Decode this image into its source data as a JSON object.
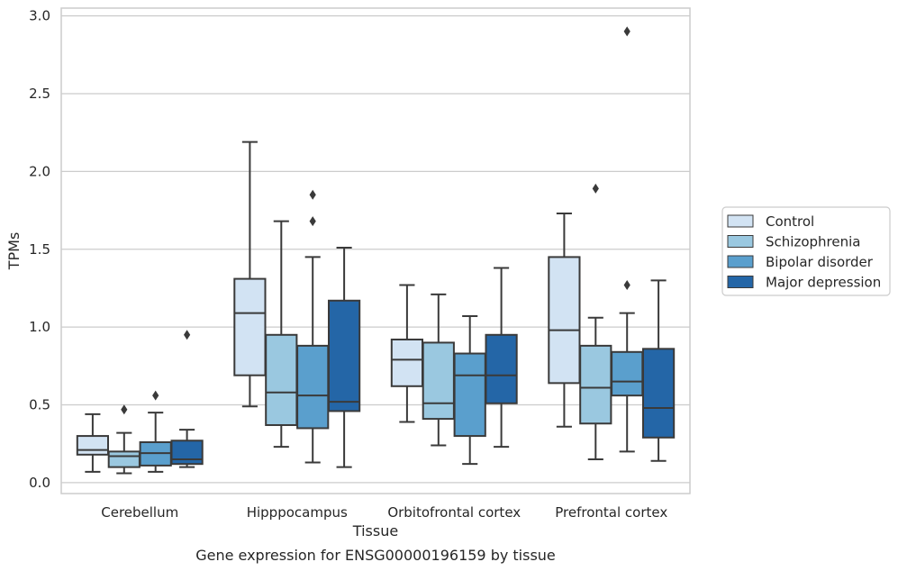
{
  "chart_data": {
    "type": "box",
    "xlabel": "Tissue",
    "ylabel": "TPMs",
    "caption": "Gene expression for ENSG00000196159 by tissue",
    "ylim": [
      -0.07,
      3.05
    ],
    "yticks": [
      "0.0",
      "0.5",
      "1.0",
      "1.5",
      "2.0",
      "2.5",
      "3.0"
    ],
    "grid": "horizontal",
    "legend_position": "right",
    "categories": [
      "Cerebellum",
      "Hipppocampus",
      "Orbitofrontal cortex",
      "Prefrontal cortex"
    ],
    "series": [
      {
        "name": "Control",
        "color": "#d2e3f3",
        "boxes": [
          {
            "whisker_low": 0.07,
            "q1": 0.18,
            "median": 0.21,
            "q3": 0.3,
            "whisker_high": 0.44,
            "outliers": []
          },
          {
            "whisker_low": 0.49,
            "q1": 0.69,
            "median": 1.09,
            "q3": 1.31,
            "whisker_high": 2.19,
            "outliers": []
          },
          {
            "whisker_low": 0.39,
            "q1": 0.62,
            "median": 0.79,
            "q3": 0.92,
            "whisker_high": 1.27,
            "outliers": []
          },
          {
            "whisker_low": 0.36,
            "q1": 0.64,
            "median": 0.98,
            "q3": 1.45,
            "whisker_high": 1.73,
            "outliers": []
          }
        ]
      },
      {
        "name": "Schizophrenia",
        "color": "#9ac8e0",
        "boxes": [
          {
            "whisker_low": 0.06,
            "q1": 0.1,
            "median": 0.17,
            "q3": 0.2,
            "whisker_high": 0.32,
            "outliers": [
              0.47
            ]
          },
          {
            "whisker_low": 0.23,
            "q1": 0.37,
            "median": 0.58,
            "q3": 0.95,
            "whisker_high": 1.68,
            "outliers": []
          },
          {
            "whisker_low": 0.24,
            "q1": 0.41,
            "median": 0.51,
            "q3": 0.9,
            "whisker_high": 1.21,
            "outliers": []
          },
          {
            "whisker_low": 0.15,
            "q1": 0.38,
            "median": 0.61,
            "q3": 0.88,
            "whisker_high": 1.06,
            "outliers": [
              1.89
            ]
          }
        ]
      },
      {
        "name": "Bipolar disorder",
        "color": "#5a9fcd",
        "boxes": [
          {
            "whisker_low": 0.07,
            "q1": 0.11,
            "median": 0.19,
            "q3": 0.26,
            "whisker_high": 0.45,
            "outliers": [
              0.56
            ]
          },
          {
            "whisker_low": 0.13,
            "q1": 0.35,
            "median": 0.56,
            "q3": 0.88,
            "whisker_high": 1.45,
            "outliers": [
              1.68,
              1.85
            ]
          },
          {
            "whisker_low": 0.12,
            "q1": 0.3,
            "median": 0.69,
            "q3": 0.83,
            "whisker_high": 1.07,
            "outliers": []
          },
          {
            "whisker_low": 0.2,
            "q1": 0.56,
            "median": 0.65,
            "q3": 0.84,
            "whisker_high": 1.09,
            "outliers": [
              1.27,
              2.9
            ]
          }
        ]
      },
      {
        "name": "Major depression",
        "color": "#2466a7",
        "boxes": [
          {
            "whisker_low": 0.1,
            "q1": 0.12,
            "median": 0.15,
            "q3": 0.27,
            "whisker_high": 0.34,
            "outliers": [
              0.95
            ]
          },
          {
            "whisker_low": 0.1,
            "q1": 0.46,
            "median": 0.52,
            "q3": 1.17,
            "whisker_high": 1.51,
            "outliers": []
          },
          {
            "whisker_low": 0.23,
            "q1": 0.51,
            "median": 0.69,
            "q3": 0.95,
            "whisker_high": 1.38,
            "outliers": []
          },
          {
            "whisker_low": 0.14,
            "q1": 0.29,
            "median": 0.48,
            "q3": 0.86,
            "whisker_high": 1.3,
            "outliers": []
          }
        ]
      }
    ],
    "colors": {
      "grid": "#cccccc",
      "frame": "#cccccc",
      "box_edge": "#3a3a3a",
      "text": "#262626"
    }
  }
}
